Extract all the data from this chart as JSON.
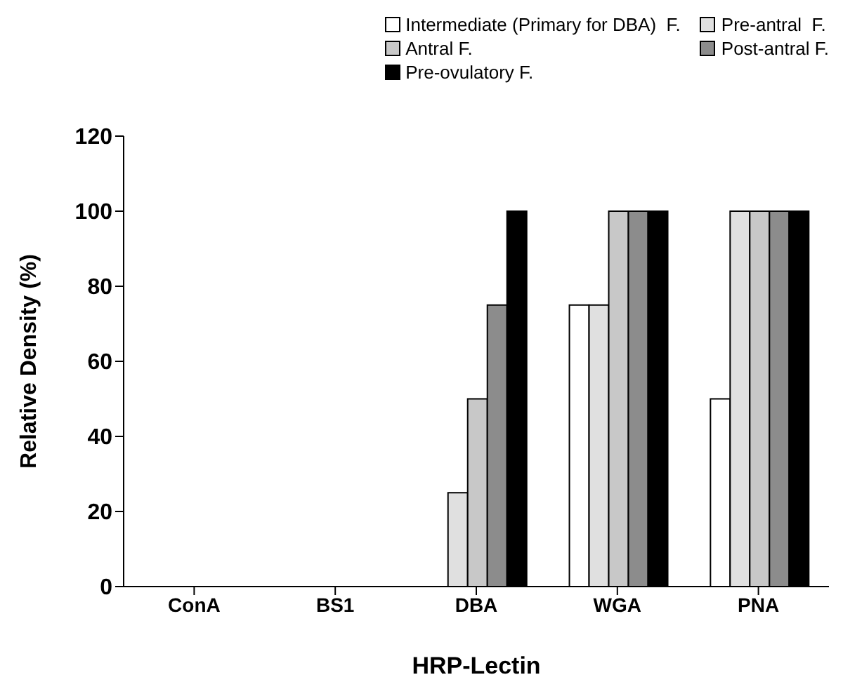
{
  "chart_data": {
    "type": "bar",
    "xlabel": "HRP-Lectin",
    "ylabel": "Relative Density (%)",
    "categories": [
      "ConA",
      "BS1",
      "DBA",
      "WGA",
      "PNA"
    ],
    "series": [
      {
        "name": "Intermediate (Primary for DBA)  F.",
        "color": "#ffffff",
        "values": [
          0,
          0,
          0,
          75,
          50
        ]
      },
      {
        "name": "Pre-antral  F.",
        "color": "#e0e0e0",
        "values": [
          0,
          0,
          25,
          75,
          100
        ]
      },
      {
        "name": "Antral F.",
        "color": "#c8c8c8",
        "values": [
          0,
          0,
          50,
          100,
          100
        ]
      },
      {
        "name": "Post-antral F.",
        "color": "#8c8c8c",
        "values": [
          0,
          0,
          75,
          100,
          100
        ]
      },
      {
        "name": "Pre-ovulatory F.",
        "color": "#000000",
        "values": [
          0,
          0,
          100,
          100,
          100
        ]
      }
    ],
    "ylim": [
      0,
      120
    ],
    "yticks": [
      0,
      20,
      40,
      60,
      80,
      100,
      120
    ],
    "grid": false,
    "legend": "top right"
  }
}
